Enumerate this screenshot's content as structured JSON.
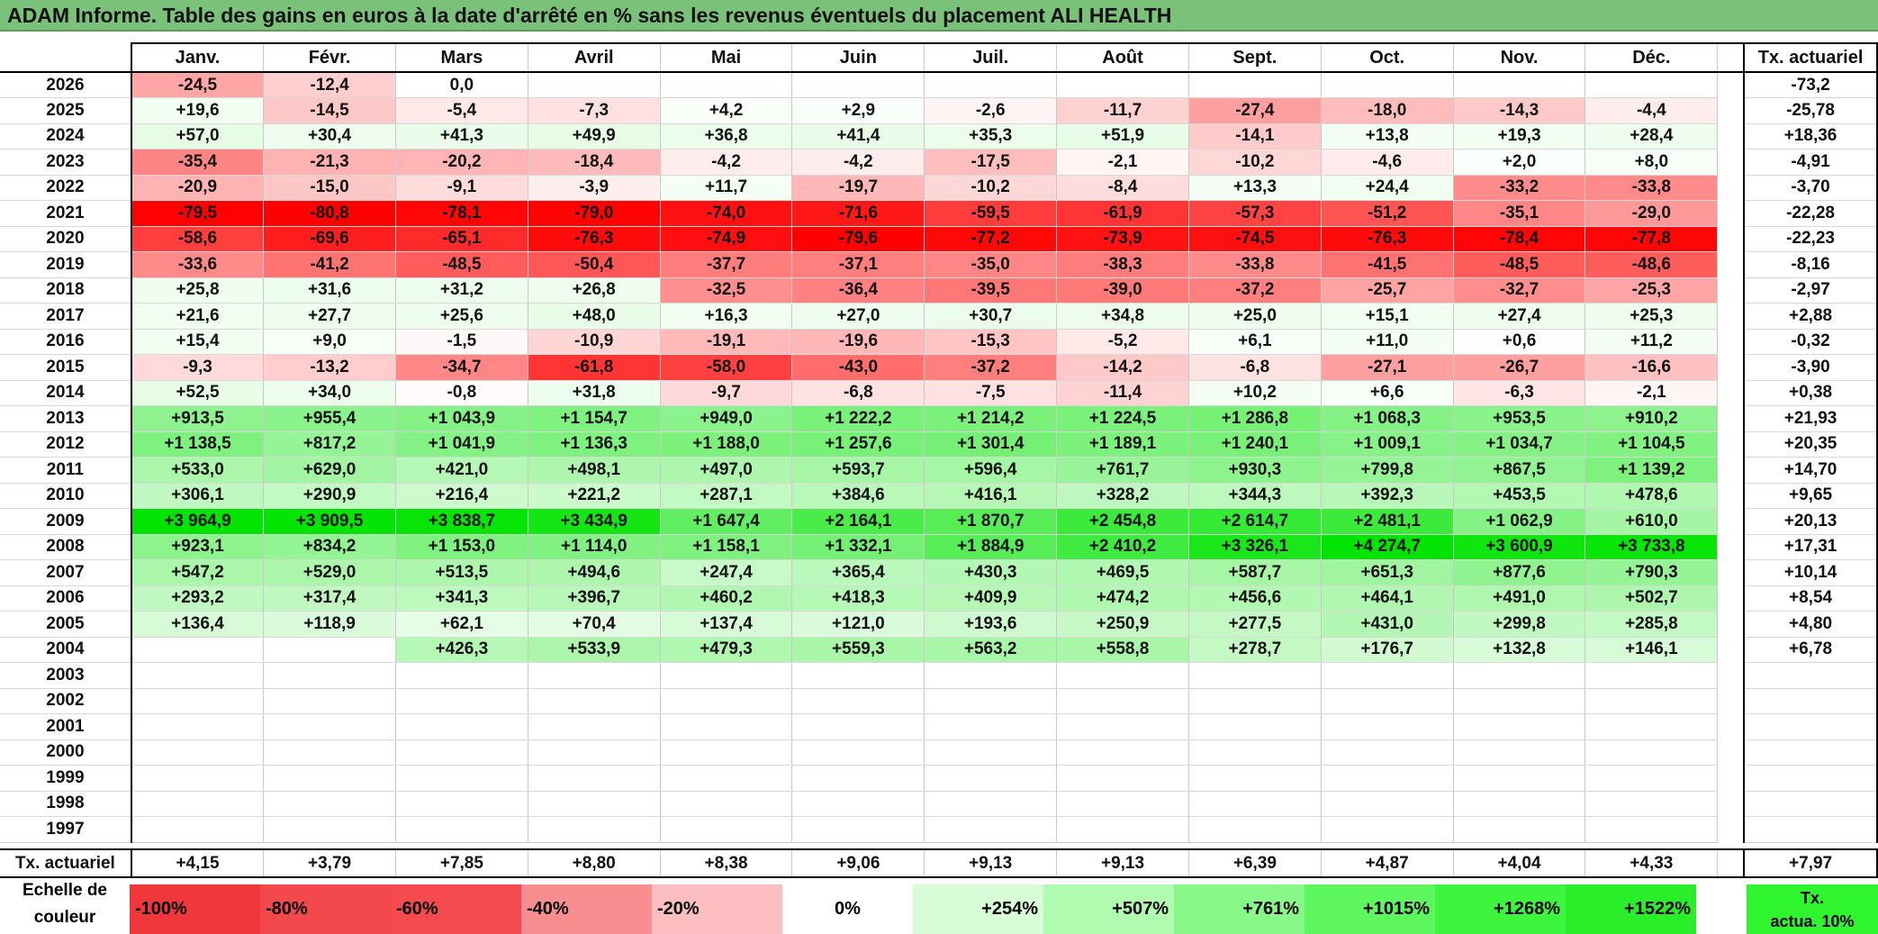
{
  "title": "ADAM Informe. Table des gains en euros à la date d'arrêté en % sans les revenus éventuels du placement ALI HEALTH",
  "months": [
    "Janv.",
    "Févr.",
    "Mars",
    "Avril",
    "Mai",
    "Juin",
    "Juil.",
    "Août",
    "Sept.",
    "Oct.",
    "Nov.",
    "Déc."
  ],
  "tx_header": "Tx. actuariel",
  "rows": [
    {
      "year": "2026",
      "values": [
        "-24,5",
        "-12,4",
        "0,0",
        "",
        "",
        "",
        "",
        "",
        "",
        "",
        "",
        ""
      ],
      "tx": "-73,2"
    },
    {
      "year": "2025",
      "values": [
        "+19,6",
        "-14,5",
        "-5,4",
        "-7,3",
        "+4,2",
        "+2,9",
        "-2,6",
        "-11,7",
        "-27,4",
        "-18,0",
        "-14,3",
        "-4,4"
      ],
      "tx": "-25,78"
    },
    {
      "year": "2024",
      "values": [
        "+57,0",
        "+30,4",
        "+41,3",
        "+49,9",
        "+36,8",
        "+41,4",
        "+35,3",
        "+51,9",
        "-14,1",
        "+13,8",
        "+19,3",
        "+28,4"
      ],
      "tx": "+18,36"
    },
    {
      "year": "2023",
      "values": [
        "-35,4",
        "-21,3",
        "-20,2",
        "-18,4",
        "-4,2",
        "-4,2",
        "-17,5",
        "-2,1",
        "-10,2",
        "-4,6",
        "+2,0",
        "+8,0"
      ],
      "tx": "-4,91"
    },
    {
      "year": "2022",
      "values": [
        "-20,9",
        "-15,0",
        "-9,1",
        "-3,9",
        "+11,7",
        "-19,7",
        "-10,2",
        "-8,4",
        "+13,3",
        "+24,4",
        "-33,2",
        "-33,8"
      ],
      "tx": "-3,70"
    },
    {
      "year": "2021",
      "values": [
        "-79,5",
        "-80,8",
        "-78,1",
        "-79,0",
        "-74,0",
        "-71,6",
        "-59,5",
        "-61,9",
        "-57,3",
        "-51,2",
        "-35,1",
        "-29,0"
      ],
      "tx": "-22,28"
    },
    {
      "year": "2020",
      "values": [
        "-58,6",
        "-69,6",
        "-65,1",
        "-76,3",
        "-74,9",
        "-79,6",
        "-77,2",
        "-73,9",
        "-74,5",
        "-76,3",
        "-78,4",
        "-77,8"
      ],
      "tx": "-22,23"
    },
    {
      "year": "2019",
      "values": [
        "-33,6",
        "-41,2",
        "-48,5",
        "-50,4",
        "-37,7",
        "-37,1",
        "-35,0",
        "-38,3",
        "-33,8",
        "-41,5",
        "-48,5",
        "-48,6"
      ],
      "tx": "-8,16"
    },
    {
      "year": "2018",
      "values": [
        "+25,8",
        "+31,6",
        "+31,2",
        "+26,8",
        "-32,5",
        "-36,4",
        "-39,5",
        "-39,0",
        "-37,2",
        "-25,7",
        "-32,7",
        "-25,3"
      ],
      "tx": "-2,97"
    },
    {
      "year": "2017",
      "values": [
        "+21,6",
        "+27,7",
        "+25,6",
        "+48,0",
        "+16,3",
        "+27,0",
        "+30,7",
        "+34,8",
        "+25,0",
        "+15,1",
        "+27,4",
        "+25,3"
      ],
      "tx": "+2,88"
    },
    {
      "year": "2016",
      "values": [
        "+15,4",
        "+9,0",
        "-1,5",
        "-10,9",
        "-19,1",
        "-19,6",
        "-15,3",
        "-5,2",
        "+6,1",
        "+11,0",
        "+0,6",
        "+11,2"
      ],
      "tx": "-0,32"
    },
    {
      "year": "2015",
      "values": [
        "-9,3",
        "-13,2",
        "-34,7",
        "-61,8",
        "-58,0",
        "-43,0",
        "-37,2",
        "-14,2",
        "-6,8",
        "-27,1",
        "-26,7",
        "-16,6"
      ],
      "tx": "-3,90"
    },
    {
      "year": "2014",
      "values": [
        "+52,5",
        "+34,0",
        "-0,8",
        "+31,8",
        "-9,7",
        "-6,8",
        "-7,5",
        "-11,4",
        "+10,2",
        "+6,6",
        "-6,3",
        "-2,1"
      ],
      "tx": "+0,38"
    },
    {
      "year": "2013",
      "values": [
        "+913,5",
        "+955,4",
        "+1 043,9",
        "+1 154,7",
        "+949,0",
        "+1 222,2",
        "+1 214,2",
        "+1 224,5",
        "+1 286,8",
        "+1 068,3",
        "+953,5",
        "+910,2"
      ],
      "tx": "+21,93"
    },
    {
      "year": "2012",
      "values": [
        "+1 138,5",
        "+817,2",
        "+1 041,9",
        "+1 136,3",
        "+1 188,0",
        "+1 257,6",
        "+1 301,4",
        "+1 189,1",
        "+1 240,1",
        "+1 009,1",
        "+1 034,7",
        "+1 104,5"
      ],
      "tx": "+20,35"
    },
    {
      "year": "2011",
      "values": [
        "+533,0",
        "+629,0",
        "+421,0",
        "+498,1",
        "+497,0",
        "+593,7",
        "+596,4",
        "+761,7",
        "+930,3",
        "+799,8",
        "+867,5",
        "+1 139,2"
      ],
      "tx": "+14,70"
    },
    {
      "year": "2010",
      "values": [
        "+306,1",
        "+290,9",
        "+216,4",
        "+221,2",
        "+287,1",
        "+384,6",
        "+416,1",
        "+328,2",
        "+344,3",
        "+392,3",
        "+453,5",
        "+478,6"
      ],
      "tx": "+9,65"
    },
    {
      "year": "2009",
      "values": [
        "+3 964,9",
        "+3 909,5",
        "+3 838,7",
        "+3 434,9",
        "+1 647,4",
        "+2 164,1",
        "+1 870,7",
        "+2 454,8",
        "+2 614,7",
        "+2 481,1",
        "+1 062,9",
        "+610,0"
      ],
      "tx": "+20,13"
    },
    {
      "year": "2008",
      "values": [
        "+923,1",
        "+834,2",
        "+1 153,0",
        "+1 114,0",
        "+1 158,1",
        "+1 332,1",
        "+1 884,9",
        "+2 410,2",
        "+3 326,1",
        "+4 274,7",
        "+3 600,9",
        "+3 733,8"
      ],
      "tx": "+17,31"
    },
    {
      "year": "2007",
      "values": [
        "+547,2",
        "+529,0",
        "+513,5",
        "+494,6",
        "+247,4",
        "+365,4",
        "+430,3",
        "+469,5",
        "+587,7",
        "+651,3",
        "+877,6",
        "+790,3"
      ],
      "tx": "+10,14"
    },
    {
      "year": "2006",
      "values": [
        "+293,2",
        "+317,4",
        "+341,3",
        "+396,7",
        "+460,2",
        "+418,3",
        "+409,9",
        "+474,2",
        "+456,6",
        "+464,1",
        "+491,0",
        "+502,7"
      ],
      "tx": "+8,54"
    },
    {
      "year": "2005",
      "values": [
        "+136,4",
        "+118,9",
        "+62,1",
        "+70,4",
        "+137,4",
        "+121,0",
        "+193,6",
        "+250,9",
        "+277,5",
        "+431,0",
        "+299,8",
        "+285,8"
      ],
      "tx": "+4,80"
    },
    {
      "year": "2004",
      "values": [
        "",
        "",
        "+426,3",
        "+533,9",
        "+479,3",
        "+559,3",
        "+563,2",
        "+558,8",
        "+278,7",
        "+176,7",
        "+132,8",
        "+146,1"
      ],
      "tx": "+6,78"
    },
    {
      "year": "2003",
      "values": [
        "",
        "",
        "",
        "",
        "",
        "",
        "",
        "",
        "",
        "",
        "",
        ""
      ],
      "tx": ""
    },
    {
      "year": "2002",
      "values": [
        "",
        "",
        "",
        "",
        "",
        "",
        "",
        "",
        "",
        "",
        "",
        ""
      ],
      "tx": ""
    },
    {
      "year": "2001",
      "values": [
        "",
        "",
        "",
        "",
        "",
        "",
        "",
        "",
        "",
        "",
        "",
        ""
      ],
      "tx": ""
    },
    {
      "year": "2000",
      "values": [
        "",
        "",
        "",
        "",
        "",
        "",
        "",
        "",
        "",
        "",
        "",
        ""
      ],
      "tx": ""
    },
    {
      "year": "1999",
      "values": [
        "",
        "",
        "",
        "",
        "",
        "",
        "",
        "",
        "",
        "",
        "",
        ""
      ],
      "tx": ""
    },
    {
      "year": "1998",
      "values": [
        "",
        "",
        "",
        "",
        "",
        "",
        "",
        "",
        "",
        "",
        "",
        ""
      ],
      "tx": ""
    },
    {
      "year": "1997",
      "values": [
        "",
        "",
        "",
        "",
        "",
        "",
        "",
        "",
        "",
        "",
        "",
        ""
      ],
      "tx": ""
    }
  ],
  "footer": {
    "label": "Tx. actuariel",
    "values": [
      "+4,15",
      "+3,79",
      "+7,85",
      "+8,80",
      "+8,38",
      "+9,06",
      "+9,13",
      "+9,13",
      "+6,39",
      "+4,87",
      "+4,04",
      "+4,33"
    ],
    "total": "+7,97"
  },
  "scale": {
    "label_line1": "Echelle de",
    "label_line2": "couleur",
    "items": [
      {
        "text": "-100%",
        "color": "#f0383c"
      },
      {
        "text": "-80%",
        "color": "#f3484c"
      },
      {
        "text": "-60%",
        "color": "#f54a4e"
      },
      {
        "text": "-40%",
        "color": "#f88e90"
      },
      {
        "text": "-20%",
        "color": "#fcbec0"
      },
      {
        "text": "0%",
        "color": "#ffffff"
      },
      {
        "text": "+254%",
        "color": "#d6fdd6"
      },
      {
        "text": "+507%",
        "color": "#b0fbb0"
      },
      {
        "text": "+761%",
        "color": "#88f888"
      },
      {
        "text": "+1015%",
        "color": "#5ef65e"
      },
      {
        "text": "+1268%",
        "color": "#3ef53e"
      },
      {
        "text": "+1522%",
        "color": "#2aee2a"
      }
    ],
    "tx_line1": "Tx.",
    "tx_line2": "actua. 10%",
    "tx_color": "#2ef52e"
  }
}
